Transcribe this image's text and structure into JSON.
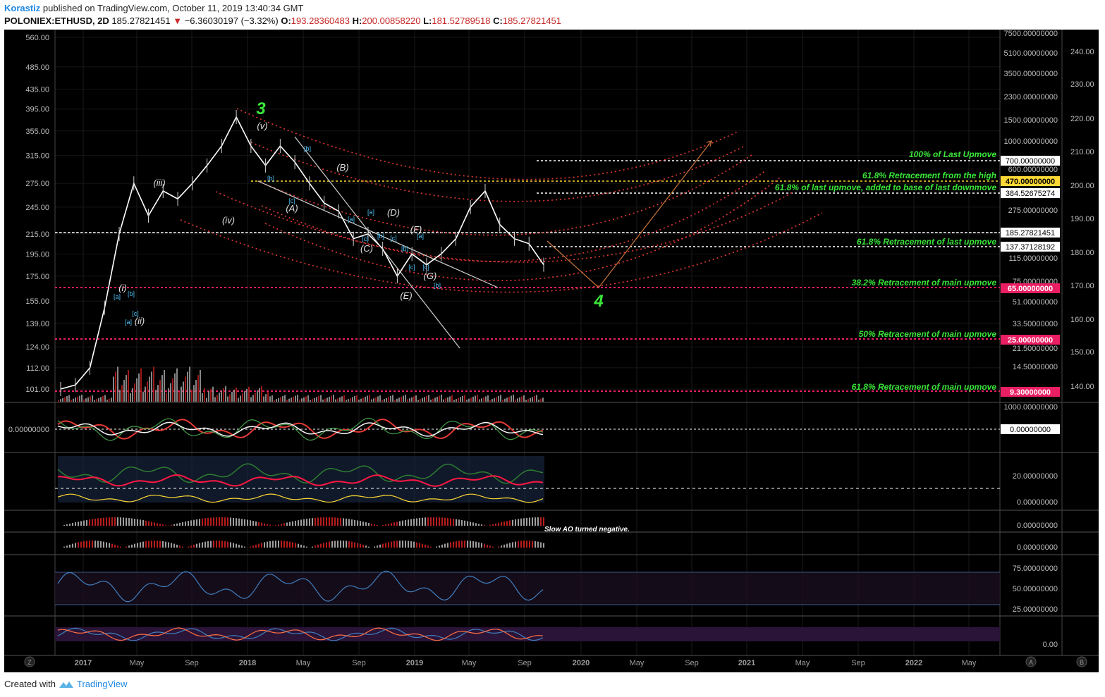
{
  "header": {
    "author": "Korastiz",
    "published": "published on TradingView.com, October 11, 2019 13:40:34 GMT",
    "symbol": "POLONIEX:ETHUSD, 2D",
    "last": "185.27821451",
    "change": "−6.36030197 (−3.32%)",
    "open_label": "O:",
    "open": "193.28360483",
    "high_label": "H:",
    "high": "200.00858220",
    "low_label": "L:",
    "low": "181.52789518",
    "close_label": "C:",
    "close": "185.27821451"
  },
  "footer": {
    "created_with": "Created with",
    "brand": "TradingView"
  },
  "colors": {
    "background": "#000000",
    "up_candle": "#ffffff",
    "down_candle": "#ffffff",
    "arc_red": "#e53935",
    "fib_pink": "#e91e63",
    "fib_text_green": "#39e639",
    "yellow_line": "#fdd835",
    "wave_green": "#39e639",
    "sub_label_blue": "#4fc3f7",
    "trend_white": "#d0d0d0",
    "projection_orange": "#c8743a"
  },
  "chart_data": {
    "type": "line",
    "symbol": "POLONIEX:ETHUSD",
    "interval": "2D",
    "y_scale": "log",
    "grid": true,
    "x_tick_labels": [
      "2017",
      "May",
      "Sep",
      "2018",
      "May",
      "Sep",
      "2019",
      "May",
      "Sep",
      "2020",
      "May",
      "Sep",
      "2021",
      "May",
      "Sep",
      "2022",
      "May"
    ],
    "left_axis_ticks": [
      "560.00",
      "485.00",
      "435.00",
      "395.00",
      "355.00",
      "315.00",
      "275.00",
      "245.00",
      "215.00",
      "195.00",
      "175.00",
      "155.00",
      "139.00",
      "124.00",
      "112.00",
      "101.00"
    ],
    "right_axis_outer_ticks": [
      "240.00",
      "230.00",
      "220.00",
      "210.00",
      "200.00",
      "190.00",
      "180.00",
      "170.00",
      "160.00",
      "150.00",
      "140.00"
    ],
    "right_axis_inner_ticks": [
      "7500.00000000",
      "5100.00000000",
      "3500.00000000",
      "2300.00000000",
      "1500.00000000",
      "1000.00000000",
      "600.00000000",
      "275.00000000",
      "115.00000000",
      "75.00000000",
      "51.00000000",
      "33.50000000",
      "21.50000000",
      "14.50000000"
    ],
    "series": [
      {
        "x": [
          "2017-01",
          "2017-02",
          "2017-03",
          "2017-04",
          "2017-05",
          "2017-06",
          "2017-07",
          "2017-08",
          "2017-09",
          "2017-10",
          "2017-11",
          "2017-12",
          "2018-01",
          "2018-02",
          "2018-03",
          "2018-04",
          "2018-05",
          "2018-06",
          "2018-07",
          "2018-08",
          "2018-09",
          "2018-10",
          "2018-11",
          "2018-12",
          "2019-01",
          "2019-02",
          "2019-03",
          "2019-04",
          "2019-05",
          "2019-06",
          "2019-07",
          "2019-08",
          "2019-09",
          "2019-10"
        ],
        "y": [
          101,
          103,
          112,
          150,
          215,
          275,
          235,
          265,
          255,
          275,
          300,
          330,
          380,
          330,
          300,
          330,
          305,
          275,
          250,
          240,
          210,
          215,
          200,
          175,
          195,
          185,
          195,
          210,
          245,
          265,
          225,
          210,
          205,
          185
        ]
      }
    ],
    "price_tags": [
      {
        "label": "700.00000000",
        "bg": "#ffffff",
        "fg": "#000000"
      },
      {
        "label": "470.00000000",
        "bg": "#fdd835",
        "fg": "#000000"
      },
      {
        "label": "384.52675274",
        "bg": "#ffffff",
        "fg": "#000000"
      },
      {
        "label": "185.27821451",
        "bg": "#ffffff",
        "fg": "#000000"
      },
      {
        "label": "137.37128192",
        "bg": "#ffffff",
        "fg": "#000000"
      },
      {
        "label": "65.00000000",
        "bg": "#e91e63",
        "fg": "#ffffff"
      },
      {
        "label": "25.00000000",
        "bg": "#e91e63",
        "fg": "#ffffff"
      },
      {
        "label": "9.30000000",
        "bg": "#e91e63",
        "fg": "#ffffff"
      }
    ],
    "fib_annotations": [
      "100% of Last Upmove",
      "61.8% Retracement from the high",
      "61.8% of last upmove, added to base of last downmove",
      "61.8% Retracement of last upmove",
      "38.2% Retracement of main upmove",
      "50% Retracement of main upmove",
      "61.8% Retracement of main upmove"
    ],
    "wave_labels": {
      "major": [
        "3",
        "4"
      ],
      "minor": [
        "(v)",
        "(iii)",
        "(iv)",
        "(i)",
        "(ii)",
        "(A)",
        "(B)",
        "(C)",
        "(D)",
        "(E)",
        "(F)",
        "(G)"
      ],
      "sub": [
        "[a]",
        "[b]",
        "[c]",
        "[a]",
        "[b]",
        "[c]",
        "[b]",
        "[a]",
        "[c]",
        "[a]",
        "[b]",
        "[c]",
        "[b]",
        "[c]",
        "[a]",
        "[c]",
        "[b]"
      ]
    },
    "panes": [
      {
        "name": "oscillator",
        "ticks": [
          "1000.00000000",
          "0.00000000"
        ],
        "tag": "0.00000000"
      },
      {
        "name": "dmi",
        "ticks": [
          "20.00000000",
          "0.00000000"
        ]
      },
      {
        "name": "slow_ao",
        "ticks": [
          "0.00000000"
        ],
        "annotation": "Slow AO turned negative."
      },
      {
        "name": "ao",
        "ticks": [
          "0.00000000"
        ]
      },
      {
        "name": "rsi",
        "ticks": [
          "75.00000000",
          "50.00000000",
          "25.00000000"
        ]
      },
      {
        "name": "stoch",
        "ticks": [
          "0.00"
        ]
      }
    ],
    "corner_buttons": [
      "Z",
      "A",
      "B"
    ]
  }
}
